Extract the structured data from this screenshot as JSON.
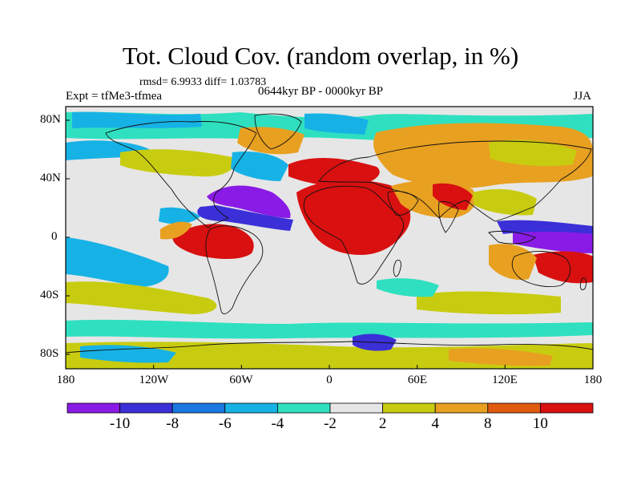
{
  "title": "Tot. Cloud Cov. (random overlap, in %)",
  "stats": "rmsd= 6.9933 diff= 1.03783",
  "experiment": "Expt = tfMe3-tfmea",
  "period": "0644kyr BP - 0000kyr BP",
  "season": "JJA",
  "lat_ticks": [
    "80N",
    "40N",
    "0",
    "40S",
    "80S"
  ],
  "lon_ticks": [
    "180",
    "120W",
    "60W",
    "0",
    "60E",
    "120E",
    "180"
  ],
  "colorbar": {
    "labels": [
      "-10",
      "-8",
      "-6",
      "-4",
      "-2",
      "2",
      "4",
      "8",
      "10"
    ],
    "colors": [
      "#8a1be6",
      "#3b2fd8",
      "#1a78e0",
      "#16b2e6",
      "#2fe0c0",
      "#e6e6e6",
      "#c8cc10",
      "#e8a020",
      "#e05a10",
      "#d81010"
    ]
  },
  "colors": {
    "background": "#e6e6e6",
    "strong_positive": "#d81010",
    "positive": "#e8a020",
    "strong_negative": "#8a1be6",
    "negative": "#16b2e6"
  }
}
